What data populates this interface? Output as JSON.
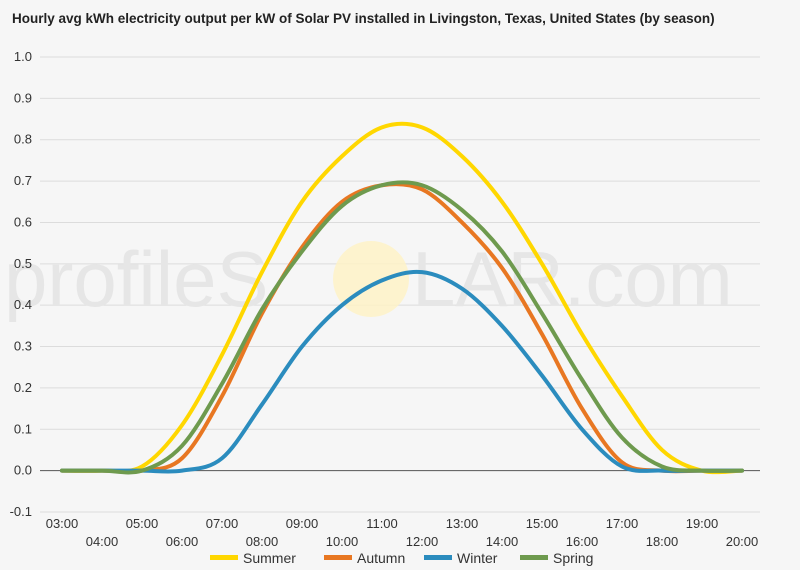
{
  "watermark": {
    "left": "profileS",
    "right": "LAR.com"
  },
  "chart_data": {
    "type": "line",
    "title": "Hourly avg kWh electricity output per kW of Solar PV installed in Livingston, Texas, United States (by season)",
    "xlabel": "",
    "ylabel": "",
    "ylim": [
      -0.1,
      1.0
    ],
    "yticks": [
      -0.1,
      0.0,
      0.1,
      0.2,
      0.3,
      0.4,
      0.5,
      0.6,
      0.7,
      0.8,
      0.9,
      1.0
    ],
    "ytick_labels": [
      "-0.1",
      "0.0",
      "0.1",
      "0.2",
      "0.3",
      "0.4",
      "0.5",
      "0.6",
      "0.7",
      "0.8",
      "0.9",
      "1.0"
    ],
    "x_labels": [
      "03:00",
      "04:00",
      "05:00",
      "06:00",
      "07:00",
      "08:00",
      "09:00",
      "10:00",
      "11:00",
      "12:00",
      "13:00",
      "14:00",
      "15:00",
      "16:00",
      "17:00",
      "18:00",
      "19:00",
      "20:00"
    ],
    "grid": true,
    "legend_position": "bottom",
    "series": [
      {
        "name": "Summer",
        "color": "#ffd700",
        "values": [
          0.0,
          0.0,
          0.01,
          0.11,
          0.28,
          0.48,
          0.65,
          0.76,
          0.83,
          0.83,
          0.76,
          0.65,
          0.5,
          0.33,
          0.18,
          0.05,
          0.0,
          0.0
        ]
      },
      {
        "name": "Autumn",
        "color": "#e87722",
        "values": [
          0.0,
          0.0,
          0.0,
          0.03,
          0.18,
          0.38,
          0.54,
          0.65,
          0.69,
          0.68,
          0.6,
          0.49,
          0.33,
          0.15,
          0.02,
          0.0,
          0.0,
          0.0
        ]
      },
      {
        "name": "Winter",
        "color": "#2b8cbe",
        "values": [
          0.0,
          0.0,
          0.0,
          0.0,
          0.03,
          0.16,
          0.3,
          0.4,
          0.46,
          0.48,
          0.44,
          0.35,
          0.23,
          0.1,
          0.01,
          0.0,
          0.0,
          0.0
        ]
      },
      {
        "name": "Spring",
        "color": "#6e9a4e",
        "values": [
          0.0,
          0.0,
          0.0,
          0.06,
          0.21,
          0.39,
          0.53,
          0.64,
          0.69,
          0.69,
          0.63,
          0.53,
          0.38,
          0.22,
          0.08,
          0.01,
          0.0,
          0.0
        ]
      }
    ]
  }
}
